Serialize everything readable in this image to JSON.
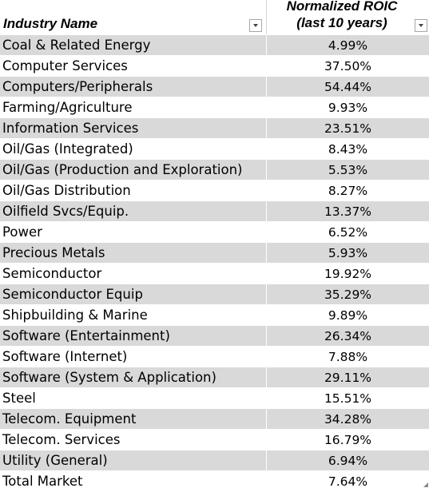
{
  "table": {
    "header": {
      "col1": "Industry Name",
      "col2_line1": "Normalized ROIC",
      "col2_line2": "(last 10 years)"
    },
    "rows": [
      {
        "name": "Coal & Related Energy",
        "value": "4.99%"
      },
      {
        "name": "Computer Services",
        "value": "37.50%"
      },
      {
        "name": "Computers/Peripherals",
        "value": "54.44%"
      },
      {
        "name": "Farming/Agriculture",
        "value": "9.93%"
      },
      {
        "name": "Information Services",
        "value": "23.51%"
      },
      {
        "name": "Oil/Gas (Integrated)",
        "value": "8.43%"
      },
      {
        "name": "Oil/Gas (Production and Exploration)",
        "value": "5.53%"
      },
      {
        "name": "Oil/Gas Distribution",
        "value": "8.27%"
      },
      {
        "name": "Oilfield Svcs/Equip.",
        "value": "13.37%"
      },
      {
        "name": "Power",
        "value": "6.52%"
      },
      {
        "name": "Precious Metals",
        "value": "5.93%"
      },
      {
        "name": "Semiconductor",
        "value": "19.92%"
      },
      {
        "name": "Semiconductor Equip",
        "value": "35.29%"
      },
      {
        "name": "Shipbuilding & Marine",
        "value": "9.89%"
      },
      {
        "name": "Software (Entertainment)",
        "value": "26.34%"
      },
      {
        "name": "Software (Internet)",
        "value": "7.88%"
      },
      {
        "name": "Software (System & Application)",
        "value": "29.11%"
      },
      {
        "name": "Steel",
        "value": "15.51%"
      },
      {
        "name": "Telecom. Equipment",
        "value": "34.28%"
      },
      {
        "name": "Telecom. Services",
        "value": "16.79%"
      },
      {
        "name": "Utility (General)",
        "value": "6.94%"
      },
      {
        "name": "Total Market",
        "value": "7.64%"
      }
    ],
    "colors": {
      "row_shade": "#d9d9d9",
      "row_plain": "#ffffff"
    },
    "icons": {
      "filter": "filter-dropdown-icon",
      "resize": "table-resize-handle-icon"
    }
  }
}
